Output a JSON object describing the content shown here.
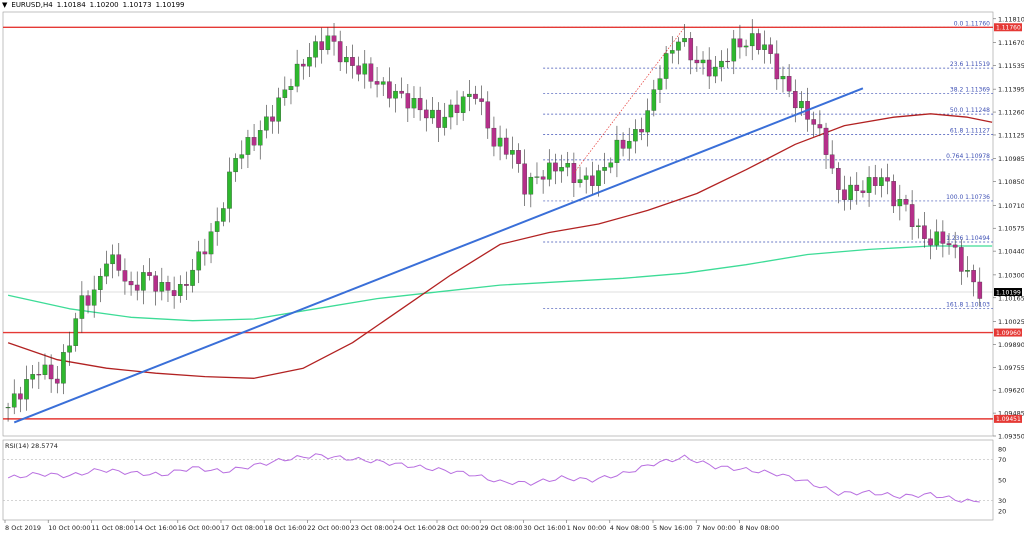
{
  "header": {
    "arrow": "▼",
    "symbol": "EURUSD,H4",
    "o": "1.10184",
    "h": "1.10200",
    "l": "1.10173",
    "c": "1.10199"
  },
  "colors": {
    "bull": "#2eb82e",
    "bear": "#b52f8a",
    "trend": "#3a6fd8",
    "ma100": "#b22222",
    "ma200": "#3ddc97",
    "hline": "#e53935",
    "fib": "#3f51b5",
    "rsi": "#b86fe0",
    "grid": "#bbbbbb"
  },
  "chart_data": [
    {
      "type": "candlestick",
      "symbol": "EURUSD",
      "timeframe": "H4",
      "ylim": [
        1.0935,
        1.1185
      ],
      "y_ticks": [
        "1.11810",
        "1.11670",
        "1.11535",
        "1.11395",
        "1.11260",
        "1.11125",
        "1.10985",
        "1.10850",
        "1.10710",
        "1.10575",
        "1.10440",
        "1.10300",
        "1.10165",
        "1.10025",
        "1.09890",
        "1.09755",
        "1.09620",
        "1.09485",
        "1.09350"
      ],
      "x_labels": [
        "8 Oct 2019",
        "10 Oct 00:00",
        "11 Oct 08:00",
        "14 Oct 16:00",
        "16 Oct 00:00",
        "17 Oct 08:00",
        "18 Oct 16:00",
        "22 Oct 00:00",
        "23 Oct 08:00",
        "24 Oct 16:00",
        "28 Oct 00:00",
        "29 Oct 08:00",
        "30 Oct 16:00",
        "1 Nov 00:00",
        "4 Nov 08:00",
        "5 Nov 16:00",
        "7 Nov 00:00",
        "8 Nov 08:00"
      ],
      "current_price": "1.10199",
      "close_path": [
        [
          0,
          1.0952
        ],
        [
          5,
          1.0975
        ],
        [
          8,
          1.0968
        ],
        [
          10,
          1.0992
        ],
        [
          12,
          1.1015
        ],
        [
          14,
          1.1018
        ],
        [
          16,
          1.104
        ],
        [
          18,
          1.1035
        ],
        [
          20,
          1.102
        ],
        [
          22,
          1.103
        ],
        [
          25,
          1.1022
        ],
        [
          28,
          1.102
        ],
        [
          31,
          1.104
        ],
        [
          34,
          1.106
        ],
        [
          37,
          1.11
        ],
        [
          40,
          1.111
        ],
        [
          43,
          1.1125
        ],
        [
          46,
          1.1145
        ],
        [
          49,
          1.116
        ],
        [
          52,
          1.117
        ],
        [
          55,
          1.1155
        ],
        [
          58,
          1.115
        ],
        [
          61,
          1.114
        ],
        [
          64,
          1.1135
        ],
        [
          67,
          1.1128
        ],
        [
          70,
          1.112
        ],
        [
          73,
          1.113
        ],
        [
          76,
          1.1138
        ],
        [
          79,
          1.1108
        ],
        [
          82,
          1.1103
        ],
        [
          84,
          1.1082
        ],
        [
          87,
          1.109
        ],
        [
          90,
          1.1095
        ],
        [
          93,
          1.1085
        ],
        [
          96,
          1.1088
        ],
        [
          99,
          1.1105
        ],
        [
          102,
          1.1112
        ],
        [
          104,
          1.1125
        ],
        [
          106,
          1.115
        ],
        [
          109,
          1.117
        ],
        [
          112,
          1.1155
        ],
        [
          115,
          1.115
        ],
        [
          118,
          1.1165
        ],
        [
          121,
          1.1168
        ],
        [
          123,
          1.1165
        ],
        [
          125,
          1.115
        ],
        [
          128,
          1.1132
        ],
        [
          131,
          1.112
        ],
        [
          133,
          1.1105
        ],
        [
          135,
          1.1078
        ],
        [
          138,
          1.108
        ],
        [
          140,
          1.1083
        ],
        [
          142,
          1.1088
        ],
        [
          144,
          1.1075
        ],
        [
          146,
          1.107
        ],
        [
          148,
          1.1055
        ],
        [
          150,
          1.105
        ],
        [
          152,
          1.1052
        ],
        [
          154,
          1.1043
        ],
        [
          156,
          1.103
        ],
        [
          157,
          1.1025
        ],
        [
          158,
          1.10199
        ]
      ],
      "ma_100": [
        [
          0,
          1.099
        ],
        [
          8,
          1.098
        ],
        [
          16,
          1.0975
        ],
        [
          24,
          1.0972
        ],
        [
          32,
          1.097
        ],
        [
          40,
          1.0969
        ],
        [
          48,
          1.0975
        ],
        [
          56,
          1.099
        ],
        [
          64,
          1.101
        ],
        [
          72,
          1.103
        ],
        [
          80,
          1.1048
        ],
        [
          88,
          1.1055
        ],
        [
          96,
          1.106
        ],
        [
          104,
          1.1068
        ],
        [
          112,
          1.1078
        ],
        [
          120,
          1.1092
        ],
        [
          128,
          1.1107
        ],
        [
          136,
          1.1118
        ],
        [
          144,
          1.1123
        ],
        [
          150,
          1.1125
        ],
        [
          156,
          1.1123
        ],
        [
          160,
          1.112
        ]
      ],
      "ma_200": [
        [
          0,
          1.1018
        ],
        [
          10,
          1.101
        ],
        [
          20,
          1.1005
        ],
        [
          30,
          1.1003
        ],
        [
          40,
          1.1004
        ],
        [
          50,
          1.101
        ],
        [
          60,
          1.1016
        ],
        [
          70,
          1.102
        ],
        [
          80,
          1.1024
        ],
        [
          90,
          1.1026
        ],
        [
          100,
          1.1028
        ],
        [
          110,
          1.1031
        ],
        [
          120,
          1.1036
        ],
        [
          130,
          1.1042
        ],
        [
          140,
          1.1045
        ],
        [
          150,
          1.1047
        ],
        [
          160,
          1.1047
        ]
      ],
      "support_resistance": [
        {
          "price": 1.1176,
          "label": "1.11760"
        },
        {
          "price": 1.0996,
          "label": "1.09960"
        },
        {
          "price": 1.09451,
          "label": "1.09451"
        }
      ],
      "trend_line": [
        [
          1,
          1.0943
        ],
        [
          139,
          1.114
        ]
      ],
      "swing_line": [
        [
          92,
          1.109
        ],
        [
          110,
          1.1176
        ]
      ],
      "fibonacci": {
        "start_bar": 87,
        "levels": [
          {
            "label": "0.0 1.11760",
            "price": 1.1176
          },
          {
            "label": "23.6 1.11519",
            "price": 1.11519
          },
          {
            "label": "38.2 1.11369",
            "price": 1.11369
          },
          {
            "label": "50.0 1.11248",
            "price": 1.11248
          },
          {
            "label": "61.8 1.11127",
            "price": 1.11127
          },
          {
            "label": "0.764 1.10978",
            "price": 1.10978
          },
          {
            "label": "100.0 1.10736",
            "price": 1.10736
          },
          {
            "label": "1.236 1.10494",
            "price": 1.10494
          },
          {
            "label": "161.8 1.10103",
            "price": 1.10103
          }
        ]
      }
    },
    {
      "type": "line",
      "title": "RSI(14) 28.5774",
      "ylim": [
        15,
        85
      ],
      "y_ticks": [
        80,
        70,
        50,
        30,
        20
      ],
      "levels": [
        70,
        30
      ],
      "values": [
        [
          0,
          52
        ],
        [
          5,
          56
        ],
        [
          10,
          54
        ],
        [
          15,
          60
        ],
        [
          20,
          57
        ],
        [
          25,
          55
        ],
        [
          30,
          62
        ],
        [
          35,
          58
        ],
        [
          40,
          64
        ],
        [
          45,
          70
        ],
        [
          50,
          74
        ],
        [
          55,
          71
        ],
        [
          60,
          68
        ],
        [
          65,
          64
        ],
        [
          70,
          60
        ],
        [
          75,
          56
        ],
        [
          80,
          48
        ],
        [
          85,
          47
        ],
        [
          90,
          52
        ],
        [
          95,
          50
        ],
        [
          100,
          56
        ],
        [
          105,
          66
        ],
        [
          110,
          72
        ],
        [
          115,
          63
        ],
        [
          120,
          60
        ],
        [
          125,
          56
        ],
        [
          130,
          48
        ],
        [
          135,
          37
        ],
        [
          140,
          38
        ],
        [
          145,
          34
        ],
        [
          150,
          36
        ],
        [
          155,
          30
        ],
        [
          158,
          28.5774
        ]
      ]
    }
  ]
}
